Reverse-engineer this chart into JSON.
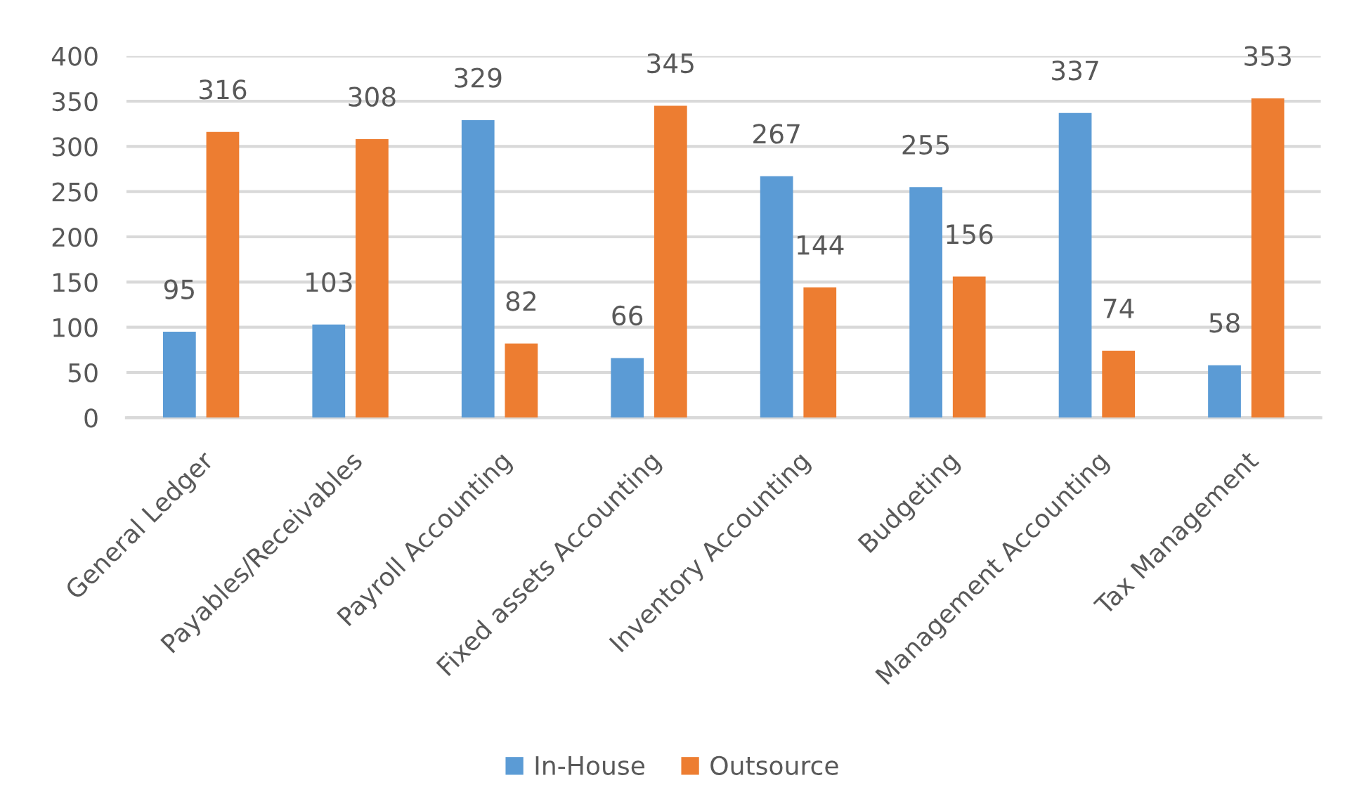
{
  "chart_data": {
    "type": "bar",
    "categories": [
      "General Ledger",
      "Payables/Receivables",
      "Payroll Accounting",
      "Fixed assets Accounting",
      "Inventory Accounting",
      "Budgeting",
      "Management Accounting",
      "Tax Management"
    ],
    "series": [
      {
        "name": "In-House",
        "color": "#5b9bd5",
        "values": [
          95,
          103,
          329,
          66,
          267,
          255,
          337,
          58
        ]
      },
      {
        "name": "Outsource",
        "color": "#ed7d31",
        "values": [
          316,
          308,
          82,
          345,
          144,
          156,
          74,
          353
        ]
      }
    ],
    "ylim": [
      0,
      400
    ],
    "yticks": [
      0,
      50,
      100,
      150,
      200,
      250,
      300,
      350,
      400
    ],
    "grid": "y",
    "legend": "bottom",
    "data_labels": true
  }
}
